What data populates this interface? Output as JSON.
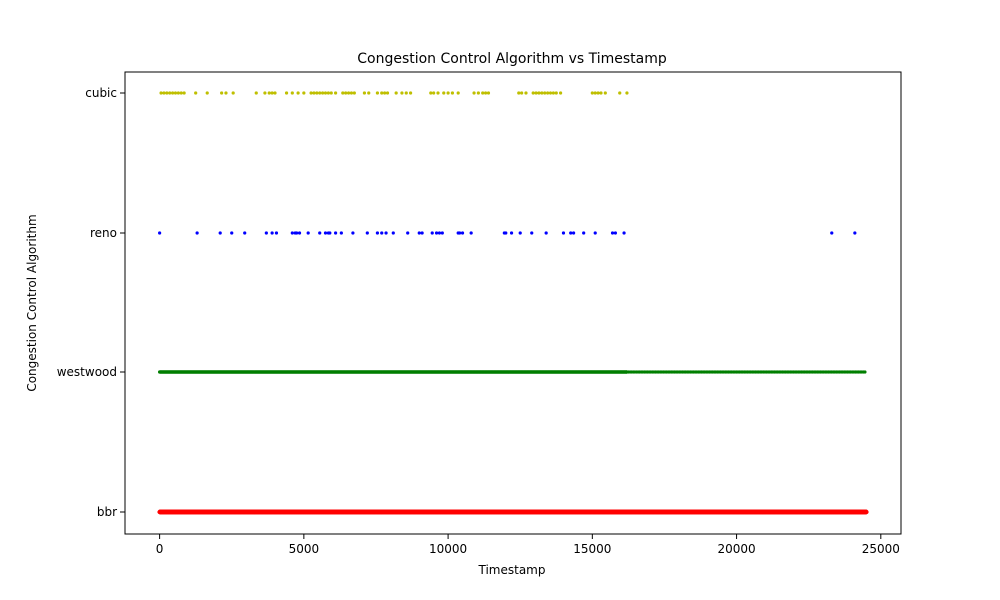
{
  "chart_data": {
    "type": "scatter",
    "title": "Congestion Control Algorithm vs Timestamp",
    "xlabel": "Timestamp",
    "ylabel": "Congestion Control Algorithm",
    "xlim": [
      -1200,
      25700
    ],
    "x_ticks": [
      "0",
      "5000",
      "10000",
      "15000",
      "20000",
      "25000"
    ],
    "categories": [
      "bbr",
      "westwood",
      "reno",
      "cubic"
    ],
    "grid": false,
    "legend": "none",
    "series": [
      {
        "category": "cubic",
        "color": "#bfbf00",
        "x": [
          50,
          150,
          250,
          350,
          450,
          550,
          650,
          750,
          850,
          1250,
          1650,
          2150,
          2300,
          2550,
          3350,
          3650,
          3800,
          3900,
          4000,
          4400,
          4600,
          4800,
          5000,
          5250,
          5350,
          5450,
          5550,
          5650,
          5750,
          5850,
          5950,
          6100,
          6350,
          6450,
          6550,
          6650,
          6750,
          7100,
          7250,
          7550,
          7700,
          7800,
          7900,
          8200,
          8400,
          8550,
          8700,
          9400,
          9500,
          9650,
          9850,
          10000,
          10150,
          10350,
          10900,
          11050,
          11200,
          11300,
          11400,
          12450,
          12550,
          12700,
          12950,
          13050,
          13150,
          13250,
          13350,
          13450,
          13550,
          13650,
          13750,
          13900,
          15000,
          15100,
          15200,
          15300,
          15450,
          15950,
          16200
        ]
      },
      {
        "category": "reno",
        "color": "#0000ff",
        "x": [
          0,
          1300,
          2100,
          2500,
          2950,
          3700,
          3900,
          4050,
          4600,
          4700,
          4750,
          4850,
          5150,
          5550,
          5750,
          5850,
          5900,
          6100,
          6300,
          6700,
          7200,
          7550,
          7700,
          7850,
          8100,
          8600,
          9000,
          9100,
          9450,
          9600,
          9700,
          9800,
          10350,
          10400,
          10500,
          10800,
          11950,
          12000,
          12200,
          12500,
          12900,
          13400,
          14000,
          14250,
          14350,
          14700,
          15100,
          15700,
          15800,
          16100,
          23300,
          24100
        ]
      },
      {
        "category": "westwood",
        "color": "#007f00",
        "range": [
          0,
          24500
        ],
        "dense_until": 16200,
        "dense_step": 8,
        "sparse_step": 55
      },
      {
        "category": "bbr",
        "color": "#ff0000",
        "range": [
          0,
          24500
        ],
        "dense_until": 24500,
        "dense_step": 6,
        "sparse_step": 6
      }
    ]
  }
}
